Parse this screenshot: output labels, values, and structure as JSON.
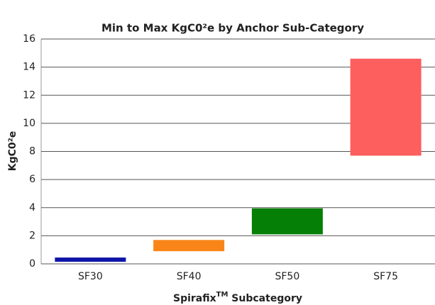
{
  "chart_data": {
    "type": "floating_bar",
    "title": "Min to Max KgC0²e by Anchor Sub-Category",
    "y_label": "KgC0²e",
    "x_label": {
      "text": "Spirafix",
      "superscript": "TM",
      "suffix": " Subcategory"
    },
    "categories": [
      "SF30",
      "SF40",
      "SF50",
      "SF75"
    ],
    "low": [
      0.15,
      0.9,
      2.1,
      7.7
    ],
    "high": [
      0.45,
      1.7,
      3.95,
      14.6
    ],
    "colors": [
      "#0d14a8",
      "#f98519",
      "#067f06",
      "#fd5e5e"
    ],
    "ylim": [
      0,
      16
    ],
    "yticks": [
      0,
      2,
      4,
      6,
      8,
      10,
      12,
      14,
      16
    ],
    "grid": true
  }
}
